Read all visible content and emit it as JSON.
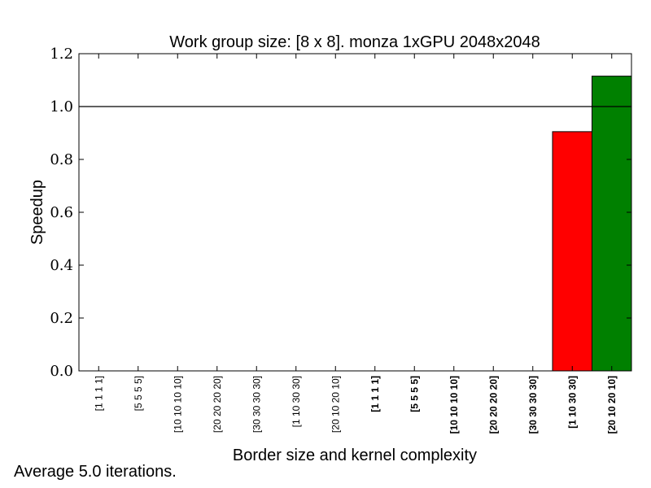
{
  "chart_data": {
    "type": "bar",
    "title": "Work group size: [8 x 8]. monza 1xGPU 2048x2048",
    "xlabel": "Border size and kernel complexity",
    "ylabel": "Speedup",
    "ylim": [
      0,
      1.2
    ],
    "yticks": [
      "0.0",
      "0.2",
      "0.4",
      "0.6",
      "0.8",
      "1.0",
      "1.2"
    ],
    "grid": false,
    "reference_line": 1.0,
    "categories": [
      "[1 1 1 1]",
      "[5 5 5 5]",
      "[10 10 10 10]",
      "[20 20 20 20]",
      "[30 30 30 30]",
      "[1 10 30 30]",
      "[20 10 20 10]",
      "[1 1 1 1]",
      "[5 5 5 5]",
      "[10 10 10 10]",
      "[20 20 20 20]",
      "[30 30 30 30]",
      "[1 10 30 30]",
      "[20 10 20 10]"
    ],
    "category_bold": [
      false,
      false,
      false,
      false,
      false,
      false,
      false,
      true,
      true,
      true,
      true,
      true,
      true,
      true
    ],
    "values": [
      0,
      0,
      0,
      0,
      0,
      0,
      0,
      0,
      0,
      0,
      0,
      0,
      0.905,
      1.115
    ],
    "bar_colors": [
      "#ff0000",
      "#008000",
      "#ff0000",
      "#008000",
      "#ff0000",
      "#008000",
      "#ff0000",
      "#008000",
      "#ff0000",
      "#008000",
      "#ff0000",
      "#008000",
      "#ff0000",
      "#008000"
    ],
    "footnote": "Average 5.0 iterations."
  }
}
